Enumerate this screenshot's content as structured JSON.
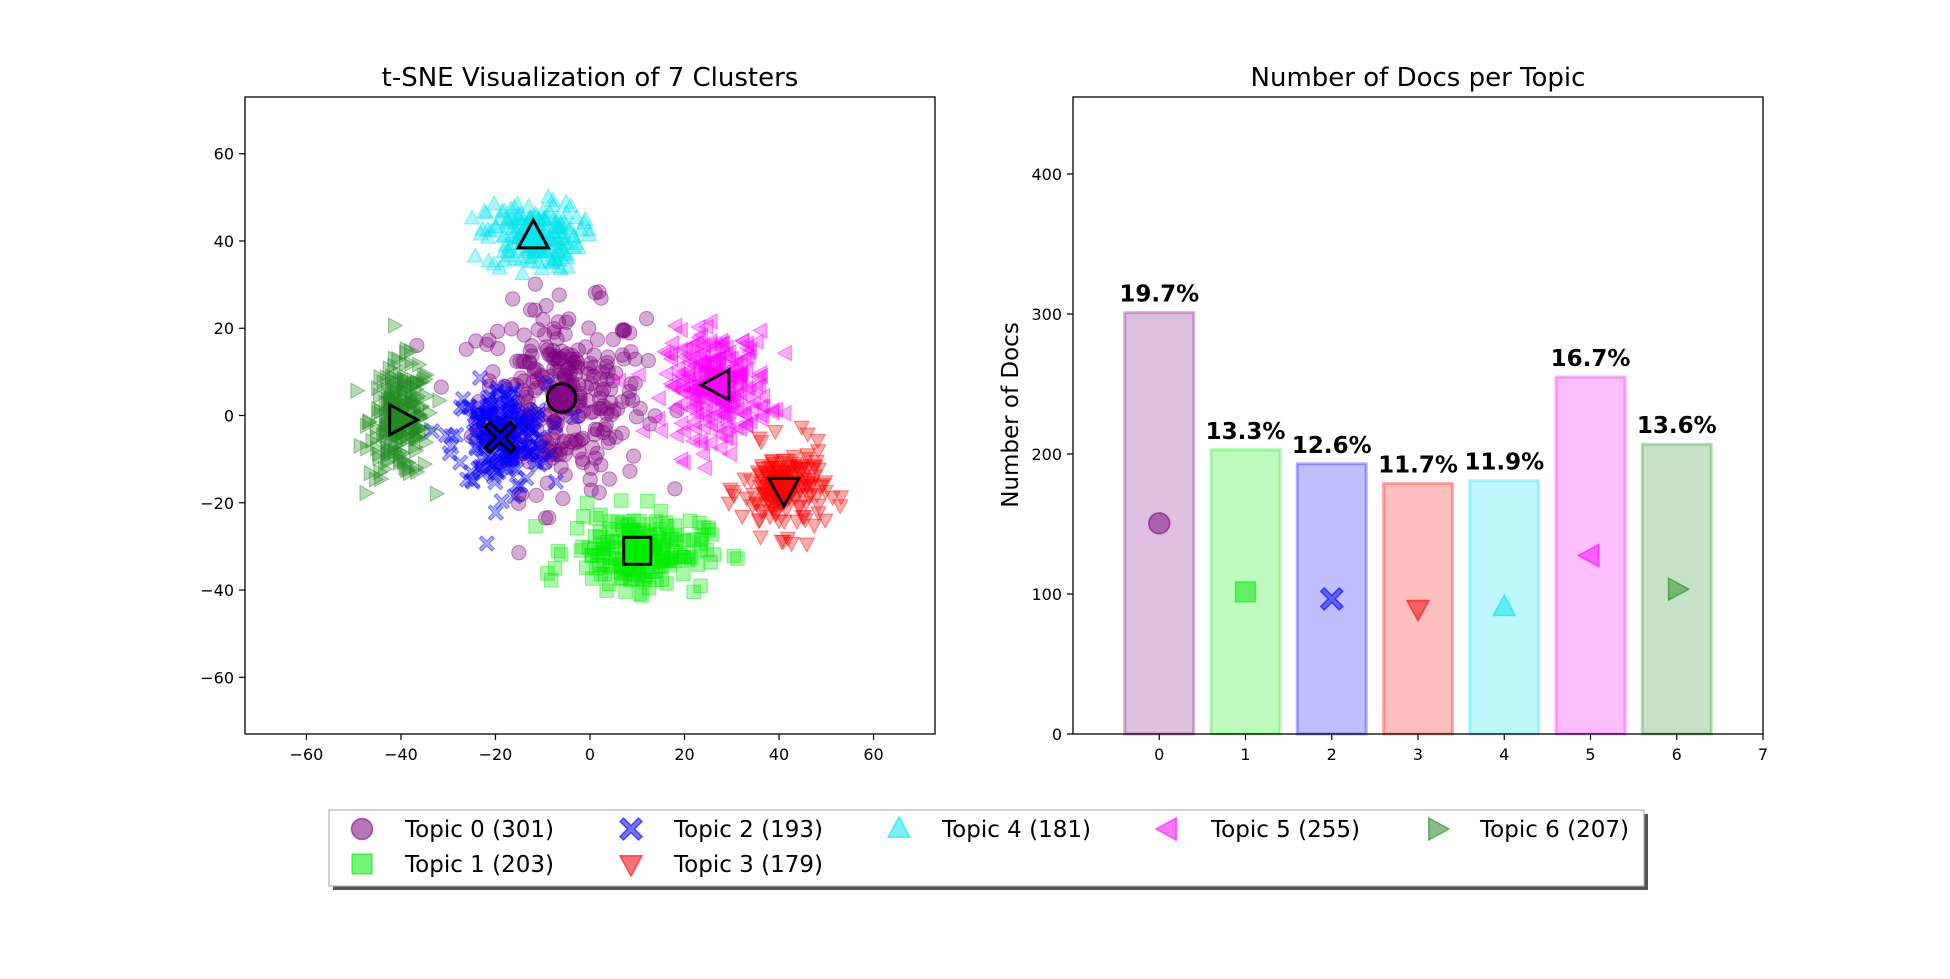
{
  "chart_data": [
    {
      "type": "scatter",
      "title": "t-SNE Visualization of 7 Clusters",
      "xlabel": "",
      "ylabel": "",
      "xlim": [
        -73,
        73
      ],
      "ylim": [
        -73,
        73
      ],
      "xticks": [
        -60,
        -40,
        -20,
        0,
        20,
        40,
        60
      ],
      "yticks": [
        -60,
        -40,
        -20,
        0,
        20,
        40,
        60
      ],
      "series": [
        {
          "name": "Topic 0",
          "count": 301,
          "color": "#800080",
          "marker": "circle",
          "center": [
            -6,
            4
          ],
          "spread": [
            16,
            19
          ]
        },
        {
          "name": "Topic 1",
          "count": 203,
          "color": "#00ee00",
          "marker": "square",
          "center": [
            10,
            -31
          ],
          "spread": [
            13,
            8
          ]
        },
        {
          "name": "Topic 2",
          "count": 193,
          "color": "#0000ff",
          "marker": "x",
          "center": [
            -19,
            -5
          ],
          "spread": [
            9,
            11
          ]
        },
        {
          "name": "Topic 3",
          "count": 179,
          "color": "#ff0000",
          "marker": "triangle-down",
          "center": [
            41,
            -17
          ],
          "spread": [
            8,
            9
          ]
        },
        {
          "name": "Topic 4",
          "count": 181,
          "color": "#00e5ee",
          "marker": "triangle-up",
          "center": [
            -12,
            41
          ],
          "spread": [
            9,
            7
          ]
        },
        {
          "name": "Topic 5",
          "count": 255,
          "color": "#ff00ff",
          "marker": "triangle-left",
          "center": [
            27,
            7
          ],
          "spread": [
            10,
            11
          ]
        },
        {
          "name": "Topic 6",
          "count": 207,
          "color": "#228b22",
          "marker": "triangle-right",
          "center": [
            -40,
            -1
          ],
          "spread": [
            6,
            12
          ]
        }
      ]
    },
    {
      "type": "bar",
      "title": "Number of Docs per Topic",
      "xlabel": "",
      "ylabel": "Number of Docs",
      "categories": [
        "0",
        "1",
        "2",
        "3",
        "4",
        "5",
        "6"
      ],
      "values": [
        301,
        203,
        193,
        179,
        181,
        255,
        207
      ],
      "labels": [
        "19.7%",
        "13.3%",
        "12.6%",
        "11.7%",
        "11.9%",
        "16.7%",
        "13.6%"
      ],
      "colors": [
        "#800080",
        "#00ee00",
        "#0000ff",
        "#ff0000",
        "#00e5ee",
        "#ff00ff",
        "#228b22"
      ],
      "markers": [
        "circle",
        "square",
        "x",
        "triangle-down",
        "triangle-up",
        "triangle-left",
        "triangle-right"
      ],
      "xlim": [
        -1,
        7
      ],
      "xticks": [
        0,
        1,
        2,
        3,
        4,
        5,
        6,
        7
      ],
      "ylim": [
        0,
        455
      ],
      "yticks": [
        0,
        100,
        200,
        300,
        400
      ]
    }
  ],
  "legend": {
    "location": "bottom-center",
    "items": [
      {
        "label": "Topic 0 (301)",
        "color": "#800080",
        "marker": "circle"
      },
      {
        "label": "Topic 2 (193)",
        "color": "#0000ff",
        "marker": "x"
      },
      {
        "label": "Topic 4 (181)",
        "color": "#00e5ee",
        "marker": "triangle-up"
      },
      {
        "label": "Topic 5 (255)",
        "color": "#ff00ff",
        "marker": "triangle-left"
      },
      {
        "label": "Topic 6 (207)",
        "color": "#228b22",
        "marker": "triangle-right"
      },
      {
        "label": "Topic 1 (203)",
        "color": "#00ee00",
        "marker": "square"
      },
      {
        "label": "Topic 3 (179)",
        "color": "#ff0000",
        "marker": "triangle-down"
      }
    ]
  }
}
